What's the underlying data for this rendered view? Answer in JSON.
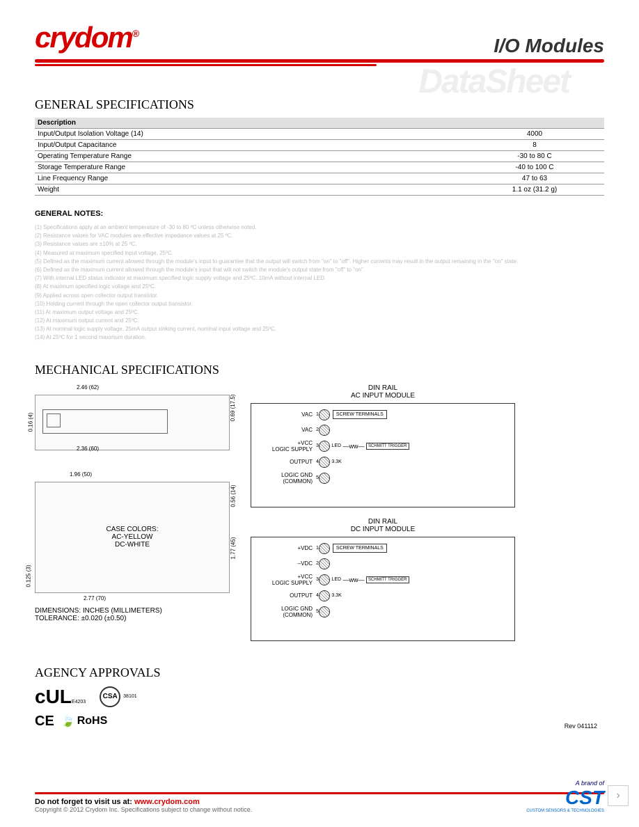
{
  "header": {
    "logo": "crydom",
    "logo_reg": "®",
    "title": "I/O Modules",
    "watermark": "DataSheet"
  },
  "general_specs": {
    "title": "GENERAL SPECIFICATIONS",
    "desc_header": "Description",
    "rows": [
      {
        "label": "Input/Output Isolation Voltage (14)",
        "value": "4000"
      },
      {
        "label": "Input/Output Capacitance",
        "value": "8"
      },
      {
        "label": "Operating Temperature Range",
        "value": "-30 to 80 C"
      },
      {
        "label": "Storage Temperature Range",
        "value": "-40 to 100 C"
      },
      {
        "label": "Line Frequency Range",
        "value": "47 to 63"
      },
      {
        "label": "Weight",
        "value": "1.1 oz (31.2 g)"
      }
    ]
  },
  "notes": {
    "title": "GENERAL NOTES:",
    "items": [
      "(1) Specifications apply at an ambient temperature of -30 to 80 ºC unless otherwise noted.",
      "(2) Resistance values for VAC modules are effective impedance values at 25 ºC.",
      "(3) Resistance values are ±10% at 25 ºC.",
      "(4) Measured at maximum specified input voltage, 25ºC.",
      "(5) Defined as the maximum current allowed through the module's input to guarantee that the output will switch from \"on\" to \"off\". Higher currents may result in the output remaining in the \"on\" state.",
      "(6) Defined as the maximum current allowed through the module's input that will not switch the module's output state from \"off\" to \"on\".",
      "(7) With internal LED status indicator at maximum specified logic supply voltage and 25ºC. 10mA without internal LED.",
      "(8) At maximum specified logic voltage and 25ºC.",
      "(9) Applied across open collector output transistor.",
      "(10) Holding current through the open collector output transistor.",
      "(11) At maximum output voltage and 25ºC.",
      "(12) At maximum output current and 25ºC.",
      "(13) At nominal logic supply voltage, 25mA output sinking current, nominal input voltage and 25ºC.",
      "(14) At 25ºC for 1 second maximum duration."
    ]
  },
  "mechanical": {
    "title": "MECHANICAL SPECIFICATIONS",
    "dims": {
      "w1": "2.46 (62)",
      "w2": "2.36 (60)",
      "h1": "0.69 (17.5)",
      "h2": "0.16 (4)",
      "w3": "1.96 (50)",
      "w4": "2.77 (70)",
      "h3": "0.56 (14)",
      "h4": "1.77 (45)",
      "h5": "0.125 (3)"
    },
    "case_colors_line1": "CASE COLORS:",
    "case_colors_line2": "AC-YELLOW",
    "case_colors_line3": "DC-WHITE",
    "dim_note1": "DIMENSIONS: INCHES (MILLIMETERS)",
    "dim_note2": "TOLERANCE: ±0.020 (±0.50)",
    "circuit1": {
      "title1": "DIN RAIL",
      "title2": "AC INPUT MODULE",
      "labels": {
        "vac1": "VAC",
        "vac2": "VAC",
        "vcc": "+VCC",
        "logic": "LOGIC SUPPLY",
        "output": "OUTPUT",
        "gnd1": "LOGIC GND",
        "gnd2": "(COMMON)",
        "screw": "SCREW TERMINALS",
        "led": "LED",
        "r33k": "3.3K",
        "schmitt": "SCHMITT TRIGGER"
      },
      "pins": [
        "1",
        "2",
        "3",
        "4",
        "5"
      ]
    },
    "circuit2": {
      "title1": "DIN RAIL",
      "title2": "DC INPUT MODULE",
      "labels": {
        "vdc1": "+VDC",
        "vdc2": "–VDC",
        "vcc": "+VCC",
        "logic": "LOGIC SUPPLY",
        "output": "OUTPUT",
        "gnd1": "LOGIC GND",
        "gnd2": "(COMMON)",
        "screw": "SCREW TERMINALS",
        "led": "LED",
        "r33k": "3.3K",
        "schmitt": "SCHMITT TRIGGER"
      },
      "pins": [
        "1",
        "2",
        "3",
        "4",
        "5"
      ]
    }
  },
  "approvals": {
    "title": "AGENCY APPROVALS",
    "ul": "UL",
    "ul_code": "E4203",
    "csa": "CSA",
    "csa_code": "38101",
    "ce": "CE",
    "rohs": "RoHS"
  },
  "rev": "Rev 041112",
  "footer": {
    "visit": "Do not forget to visit us at: ",
    "url": "www.crydom.com",
    "copy": "Copyright © 2012 Crydom Inc. Specifications subject to change without notice.",
    "brand_of": "A brand of",
    "cst": "CST",
    "cst_sub": "CUSTOM SENSORS & TECHNOLOGIES"
  }
}
